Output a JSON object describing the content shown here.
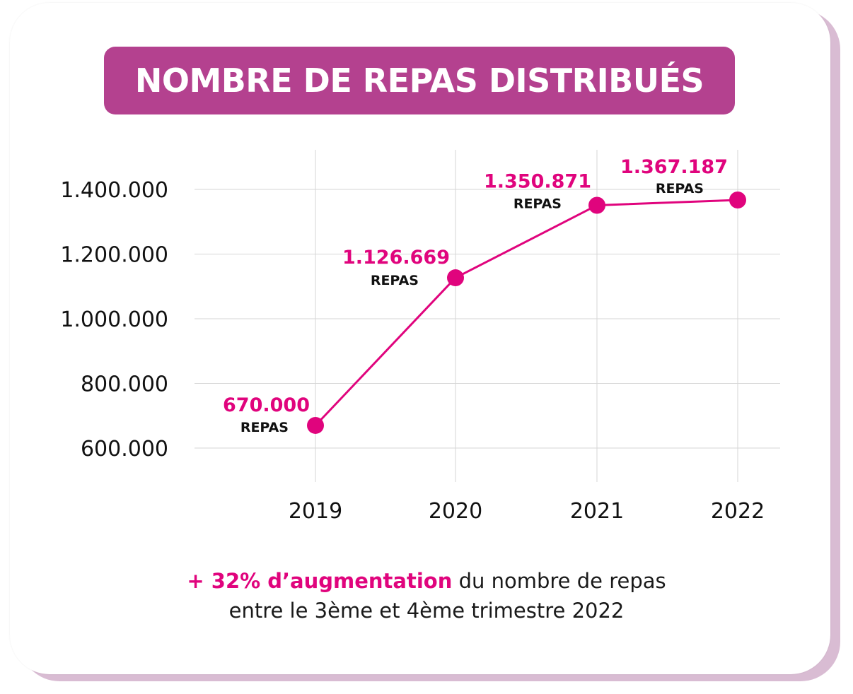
{
  "title": "NOMBRE DE REPAS DISTRIBUÉS",
  "colors": {
    "title_bg": "#b4418f",
    "line": "#e0047d",
    "value_label": "#e0047d",
    "grid": "#d6d6d6",
    "card_shadow": "#d9bcd3"
  },
  "chart_data": {
    "type": "line",
    "title": "NOMBRE DE REPAS DISTRIBUÉS",
    "xlabel": "",
    "ylabel": "",
    "categories": [
      "2019",
      "2020",
      "2021",
      "2022"
    ],
    "values": [
      670000,
      1126669,
      1350871,
      1367187
    ],
    "ylim": [
      560000,
      1440000
    ],
    "yticks": [
      600000,
      800000,
      1000000,
      1200000,
      1400000
    ],
    "ytick_labels": [
      "600.000",
      "800.000",
      "1.000.000",
      "1.200.000",
      "1.400.000"
    ],
    "data_labels": [
      "670.000",
      "1.126.669",
      "1.350.871",
      "1.367.187"
    ],
    "data_unit_label": "REPAS",
    "grid": true
  },
  "caption": {
    "highlight": "+ 32% d’augmentation",
    "rest": " du nombre de repas",
    "line2": "entre le 3ème et 4ème trimestre 2022"
  }
}
